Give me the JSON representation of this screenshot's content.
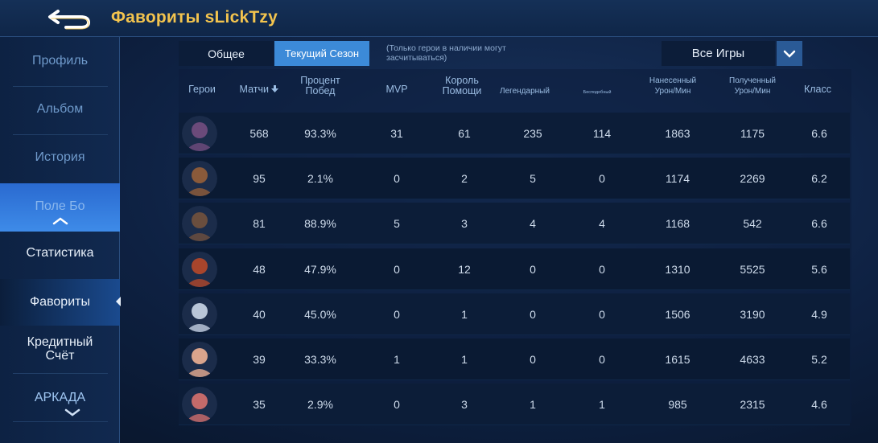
{
  "header": {
    "title": "Фавориты sLickTzy"
  },
  "sidebar": {
    "items": [
      {
        "label": "Профиль"
      },
      {
        "label": "Альбом"
      },
      {
        "label": "История"
      },
      {
        "label": "Поле Бо"
      },
      {
        "label": "Статистика"
      },
      {
        "label": "Фавориты"
      },
      {
        "label": "Кредитный Счёт"
      },
      {
        "label": "АРКАДА"
      }
    ]
  },
  "filters": {
    "tab_general": "Общее",
    "tab_season": "Текущий Сезон",
    "note": "(Только герои в наличии могут засчитываться)",
    "dropdown_value": "Все Игры"
  },
  "table": {
    "headers": {
      "hero": "Герои",
      "matches": "Матчи",
      "winrate": "Процент Побед",
      "mvp": "MVP",
      "assist_king": "Король Помощи",
      "legendary": "Легендарный",
      "unstoppable": "Бесподобный",
      "dmg_dealt": "Нанесенный Урон/Мин",
      "dmg_taken": "Полученный Урон/Мин",
      "rating": "Класс"
    },
    "rows": [
      {
        "matches": "568",
        "winrate": "93.3%",
        "mvp": "31",
        "assist_king": "61",
        "legendary": "235",
        "unstoppable": "114",
        "dmg_dealt": "1863",
        "dmg_taken": "1175",
        "rating": "6.6",
        "avatar_color": "#6b4a7a"
      },
      {
        "matches": "95",
        "winrate": "2.1%",
        "mvp": "0",
        "assist_king": "2",
        "legendary": "5",
        "unstoppable": "0",
        "dmg_dealt": "1174",
        "dmg_taken": "2269",
        "rating": "6.2",
        "avatar_color": "#8a5a3a"
      },
      {
        "matches": "81",
        "winrate": "88.9%",
        "mvp": "5",
        "assist_king": "3",
        "legendary": "4",
        "unstoppable": "4",
        "dmg_dealt": "1168",
        "dmg_taken": "542",
        "rating": "6.6",
        "avatar_color": "#6a4e3e"
      },
      {
        "matches": "48",
        "winrate": "47.9%",
        "mvp": "0",
        "assist_king": "12",
        "legendary": "0",
        "unstoppable": "0",
        "dmg_dealt": "1310",
        "dmg_taken": "5525",
        "rating": "5.6",
        "avatar_color": "#a8452c"
      },
      {
        "matches": "40",
        "winrate": "45.0%",
        "mvp": "0",
        "assist_king": "1",
        "legendary": "0",
        "unstoppable": "0",
        "dmg_dealt": "1506",
        "dmg_taken": "3190",
        "rating": "4.9",
        "avatar_color": "#b9c6d8"
      },
      {
        "matches": "39",
        "winrate": "33.3%",
        "mvp": "1",
        "assist_king": "1",
        "legendary": "0",
        "unstoppable": "0",
        "dmg_dealt": "1615",
        "dmg_taken": "4633",
        "rating": "5.2",
        "avatar_color": "#d9a48c"
      },
      {
        "matches": "35",
        "winrate": "2.9%",
        "mvp": "0",
        "assist_king": "3",
        "legendary": "1",
        "unstoppable": "1",
        "dmg_dealt": "985",
        "dmg_taken": "2315",
        "rating": "4.6",
        "avatar_color": "#c46a6a"
      }
    ]
  },
  "colors": {
    "accent": "#3c8ad8",
    "title": "#f3c44e"
  }
}
